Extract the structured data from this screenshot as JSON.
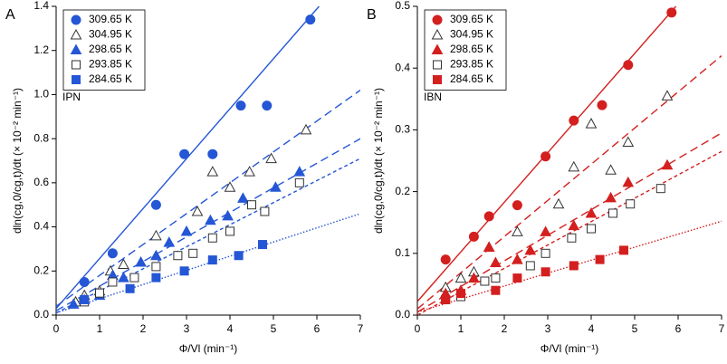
{
  "chart_data": [
    {
      "type": "scatter",
      "panel": "A",
      "annotation": "IPN",
      "color": "#2456d6",
      "xlabel": "Φ/Vl (min⁻¹)",
      "ylabel": "dln(cg,0/cg,t)/dt (× 10⁻² min⁻¹)",
      "xlim": [
        0,
        7
      ],
      "ylim": [
        0,
        1.4
      ],
      "xticks": [
        0,
        1,
        2,
        3,
        4,
        5,
        6,
        7
      ],
      "yticks": [
        {
          "value": 0,
          "label": "0.0"
        },
        0.2,
        0.4,
        0.6,
        0.8,
        {
          "value": 1,
          "label": "1.0"
        },
        1.2,
        1.4
      ],
      "legend": "upper-left",
      "series": [
        {
          "name": "309.65 K",
          "marker": "circle",
          "filled": true,
          "line": "solid",
          "x": [
            0.65,
            1.3,
            2.3,
            2.95,
            3.6,
            4.25,
            4.85,
            5.85
          ],
          "values": [
            0.15,
            0.28,
            0.5,
            0.73,
            0.73,
            0.95,
            0.95,
            1.34
          ],
          "fit": {
            "x": [
              0,
              6.05
            ],
            "y": [
              0.03,
              1.4
            ]
          }
        },
        {
          "name": "304.95 K",
          "marker": "triangle",
          "filled": false,
          "line": "dashed",
          "x": [
            0.45,
            0.65,
            1.0,
            1.25,
            1.55,
            2.3,
            3.25,
            3.6,
            4.0,
            4.45,
            4.95,
            5.75
          ],
          "values": [
            0.06,
            0.09,
            0.11,
            0.2,
            0.23,
            0.36,
            0.47,
            0.65,
            0.58,
            0.65,
            0.71,
            0.84
          ],
          "fit": {
            "x": [
              0,
              7
            ],
            "y": [
              0.04,
              1.02
            ]
          }
        },
        {
          "name": "298.65 K",
          "marker": "triangle",
          "filled": true,
          "line": "dashed",
          "x": [
            0.4,
            0.65,
            1.0,
            1.3,
            1.55,
            1.95,
            2.3,
            2.6,
            3.0,
            3.55,
            3.95,
            4.3,
            5.05,
            5.6
          ],
          "values": [
            0.05,
            0.07,
            0.09,
            0.18,
            0.17,
            0.24,
            0.27,
            0.33,
            0.38,
            0.43,
            0.45,
            0.53,
            0.58,
            0.65
          ],
          "fit": {
            "x": [
              0,
              7
            ],
            "y": [
              0.02,
              0.8
            ]
          }
        },
        {
          "name": "293.85 K",
          "marker": "square",
          "filled": false,
          "line": "short-dashed",
          "x": [
            0.65,
            1.0,
            1.3,
            1.8,
            2.3,
            2.8,
            3.15,
            3.6,
            4.0,
            4.5,
            4.8,
            5.6
          ],
          "values": [
            0.06,
            0.1,
            0.15,
            0.17,
            0.22,
            0.27,
            0.28,
            0.35,
            0.38,
            0.5,
            0.47,
            0.6
          ],
          "fit": {
            "x": [
              0,
              7
            ],
            "y": [
              0.01,
              0.71
            ]
          }
        },
        {
          "name": "284.65 K",
          "marker": "square",
          "filled": true,
          "line": "dotted",
          "x": [
            0.65,
            1.7,
            2.3,
            2.95,
            3.6,
            4.2,
            4.75
          ],
          "values": [
            0.07,
            0.12,
            0.17,
            0.2,
            0.25,
            0.27,
            0.32
          ],
          "fit": {
            "x": [
              0,
              7
            ],
            "y": [
              0.01,
              0.46
            ]
          }
        }
      ]
    },
    {
      "type": "scatter",
      "panel": "B",
      "annotation": "IBN",
      "color": "#d41f1f",
      "xlabel": "Φ/Vl (min⁻¹)",
      "ylabel": "dln(cg,0/cg,t)/dt (× 10⁻² min⁻¹)",
      "xlim": [
        0,
        7
      ],
      "ylim": [
        0,
        0.5
      ],
      "xticks": [
        0,
        1,
        2,
        3,
        4,
        5,
        6,
        7
      ],
      "yticks": [
        {
          "value": 0,
          "label": "0.0"
        },
        0.1,
        0.2,
        0.3,
        0.4,
        0.5
      ],
      "legend": "upper-left",
      "series": [
        {
          "name": "309.65 K",
          "marker": "circle",
          "filled": true,
          "line": "solid",
          "x": [
            0.65,
            1.3,
            1.65,
            2.3,
            2.95,
            3.6,
            4.25,
            4.85,
            5.85
          ],
          "values": [
            0.09,
            0.127,
            0.16,
            0.178,
            0.257,
            0.315,
            0.34,
            0.405,
            0.49
          ],
          "fit": {
            "x": [
              0,
              5.95
            ],
            "y": [
              0.022,
              0.5
            ]
          }
        },
        {
          "name": "304.95 K",
          "marker": "triangle",
          "filled": false,
          "line": "dashed",
          "x": [
            0.65,
            1.0,
            1.3,
            1.65,
            2.3,
            3.25,
            3.6,
            4.0,
            4.45,
            4.85,
            5.75
          ],
          "values": [
            0.045,
            0.06,
            0.07,
            0.11,
            0.135,
            0.18,
            0.24,
            0.31,
            0.235,
            0.28,
            0.355
          ],
          "fit": {
            "x": [
              0,
              7
            ],
            "y": [
              0.01,
              0.42
            ]
          }
        },
        {
          "name": "298.65 K",
          "marker": "triangle",
          "filled": true,
          "line": "dashed",
          "x": [
            0.65,
            1.0,
            1.3,
            1.65,
            1.8,
            2.3,
            2.6,
            2.95,
            3.6,
            4.0,
            4.45,
            4.85,
            5.75
          ],
          "values": [
            0.035,
            0.04,
            0.06,
            0.11,
            0.085,
            0.09,
            0.105,
            0.135,
            0.145,
            0.165,
            0.19,
            0.215,
            0.243
          ],
          "fit": {
            "x": [
              0,
              7
            ],
            "y": [
              0.005,
              0.295
            ]
          }
        },
        {
          "name": "293.85 K",
          "marker": "square",
          "filled": false,
          "line": "short-dashed",
          "x": [
            0.65,
            1.0,
            1.55,
            1.8,
            2.6,
            2.95,
            3.55,
            4.0,
            4.5,
            4.9,
            5.6
          ],
          "values": [
            0.025,
            0.03,
            0.055,
            0.06,
            0.08,
            0.1,
            0.125,
            0.14,
            0.165,
            0.18,
            0.205
          ],
          "fit": {
            "x": [
              0,
              7
            ],
            "y": [
              0,
              0.265
            ]
          }
        },
        {
          "name": "284.65 K",
          "marker": "square",
          "filled": true,
          "line": "dotted",
          "x": [
            0.65,
            1.0,
            1.8,
            2.3,
            2.95,
            3.6,
            4.2,
            4.75
          ],
          "values": [
            0.025,
            0.035,
            0.04,
            0.06,
            0.07,
            0.08,
            0.09,
            0.105
          ],
          "fit": {
            "x": [
              0,
              7
            ],
            "y": [
              0.005,
              0.152
            ]
          }
        }
      ]
    }
  ]
}
